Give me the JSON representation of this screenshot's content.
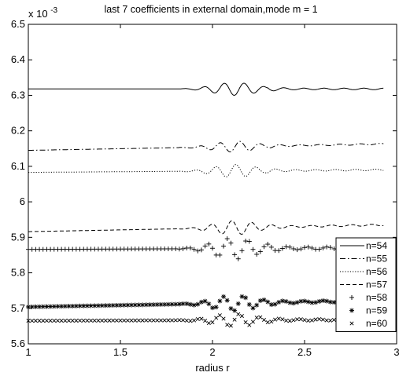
{
  "chart_data": {
    "type": "line",
    "title": "last 7 coefficients in external domain,mode m = 1",
    "xlabel": "radius r",
    "ylabel": "",
    "y_exponent_label": "x 10",
    "y_exponent_power": "-3",
    "xlim": [
      1,
      3
    ],
    "ylim": [
      5.6,
      6.5
    ],
    "xticks": [
      "1",
      "1.5",
      "2",
      "2.5",
      "3"
    ],
    "yticks": [
      "5.6",
      "5.7",
      "5.8",
      "5.9",
      "6",
      "6.1",
      "6.2",
      "6.3",
      "6.4",
      "6.5"
    ],
    "x_range": [
      1,
      2.93
    ],
    "legend_position": "bottom-right",
    "grid": false,
    "series": [
      {
        "name": "n=54",
        "baseline": 6.318,
        "style": "solid",
        "amplitude": 0.018
      },
      {
        "name": "n=55",
        "baseline": 6.145,
        "end": 6.163,
        "style": "dashdot",
        "amplitude": 0.015
      },
      {
        "name": "n=56",
        "baseline": 6.083,
        "end": 6.09,
        "style": "dotted",
        "amplitude": 0.018
      },
      {
        "name": "n=57",
        "baseline": 5.916,
        "end": 5.935,
        "style": "dashed",
        "amplitude": 0.02
      },
      {
        "name": "n=58",
        "baseline": 5.866,
        "end": 5.87,
        "style": "plus",
        "amplitude": 0.03
      },
      {
        "name": "n=59",
        "baseline": 5.704,
        "end": 5.722,
        "style": "star",
        "amplitude": 0.022
      },
      {
        "name": "n=60",
        "baseline": 5.665,
        "end": 5.668,
        "style": "x",
        "amplitude": 0.018
      }
    ]
  }
}
